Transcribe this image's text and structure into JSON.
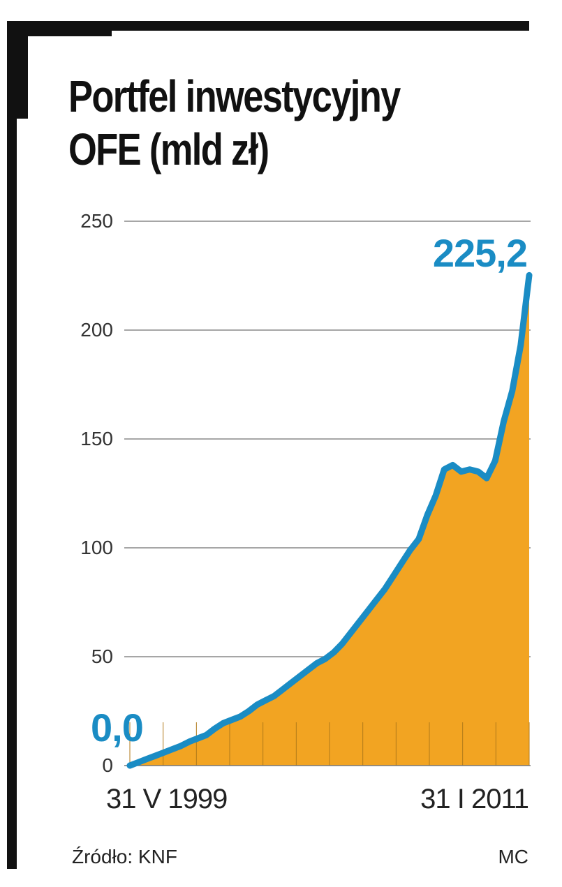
{
  "title_lines": [
    "Portfel inwestycyjny",
    "OFE (mld zł)"
  ],
  "source": "Źródło: KNF",
  "credit": "MC",
  "colors": {
    "line": "#1a8cc4",
    "fill": "#f2a422",
    "grid": "#888888"
  },
  "chart_data": {
    "type": "area",
    "title": "Portfel inwestycyjny OFE (mld zł)",
    "xlabel": "",
    "ylabel": "",
    "ylim": [
      0,
      250
    ],
    "yticks": [
      0,
      50,
      100,
      150,
      200,
      250
    ],
    "ytick_labels": [
      "0",
      "50",
      "100",
      "150",
      "200",
      "250"
    ],
    "x_labels": [
      "31 V 1999",
      "31 I 2011"
    ],
    "grid": true,
    "annotations": [
      {
        "label": "0,0",
        "at": "start",
        "value": 0.0
      },
      {
        "label": "225,2",
        "at": "end",
        "value": 225.2
      }
    ],
    "x": [
      "1999-05",
      "1999-08",
      "1999-11",
      "2000-02",
      "2000-05",
      "2000-08",
      "2000-11",
      "2001-02",
      "2001-05",
      "2001-08",
      "2001-11",
      "2002-02",
      "2002-05",
      "2002-08",
      "2002-11",
      "2003-02",
      "2003-05",
      "2003-08",
      "2003-11",
      "2004-02",
      "2004-05",
      "2004-08",
      "2004-11",
      "2005-02",
      "2005-05",
      "2005-08",
      "2005-11",
      "2006-02",
      "2006-05",
      "2006-08",
      "2006-11",
      "2007-02",
      "2007-05",
      "2007-08",
      "2007-11",
      "2008-02",
      "2008-05",
      "2008-08",
      "2008-11",
      "2009-02",
      "2009-05",
      "2009-08",
      "2009-11",
      "2010-02",
      "2010-05",
      "2010-08",
      "2010-11",
      "2011-01"
    ],
    "series": [
      {
        "values": [
          0,
          1.5,
          3,
          4.5,
          6,
          7.5,
          9,
          11,
          12.5,
          14,
          17,
          19.5,
          21,
          22.5,
          25,
          28,
          30,
          32,
          35,
          38,
          41,
          44,
          47,
          49,
          52,
          56,
          61,
          66,
          71,
          76,
          81,
          87,
          93,
          99,
          104,
          115,
          124,
          136,
          138,
          135,
          136,
          135,
          132,
          140,
          158,
          172,
          193,
          225.2
        ]
      }
    ]
  }
}
